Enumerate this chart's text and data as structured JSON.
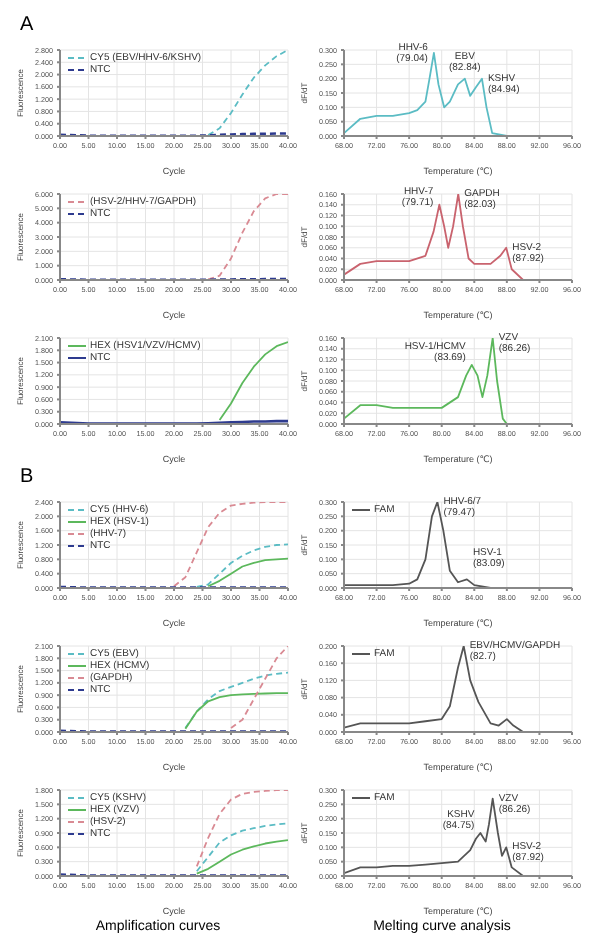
{
  "chart_data": [
    {
      "type": "line",
      "title": "A",
      "xlabel": "Cycle",
      "ylabel": "Fluorescence",
      "x": [
        0,
        5,
        10,
        15,
        20,
        22,
        24,
        26,
        28,
        30,
        32,
        34,
        36,
        38,
        40
      ],
      "grid": true,
      "marker": "none",
      "legend": "top left",
      "series": [
        {
          "name": "CY5 (EBV/HHV-6/KSHV)",
          "color": "#5bbcc4",
          "line_style": "dashed",
          "values": [
            null,
            null,
            null,
            null,
            null,
            null,
            null,
            0.03,
            0.25,
            0.75,
            1.35,
            1.9,
            2.3,
            2.6,
            2.8
          ]
        },
        {
          "name": "NTC",
          "color": "#2e3b8f",
          "line_style": "dashed",
          "values": [
            0.04,
            0.01,
            0.01,
            0.01,
            0.01,
            0.01,
            0.01,
            0.02,
            0.04,
            0.05,
            0.06,
            0.07,
            0.07,
            0.08,
            0.08
          ]
        }
      ],
      "xlim": [
        0,
        40
      ],
      "xticks": [
        {
          "value": 0,
          "label": "0.00"
        },
        {
          "value": 5,
          "label": "5.00"
        },
        {
          "value": 10,
          "label": "10.00"
        },
        {
          "value": 15,
          "label": "15.00"
        },
        {
          "value": 20,
          "label": "20.00"
        },
        {
          "value": 25,
          "label": "25.00"
        },
        {
          "value": 30,
          "label": "30.00"
        },
        {
          "value": 35,
          "label": "35.00"
        },
        {
          "value": 40,
          "label": "40.00"
        }
      ],
      "ylim": [
        0,
        2.8
      ],
      "yticks": [
        {
          "value": 0,
          "label": "0.000"
        },
        {
          "value": 0.4,
          "label": "0.400"
        },
        {
          "value": 0.8,
          "label": "0.800"
        },
        {
          "value": 1.2,
          "label": "1.200"
        },
        {
          "value": 1.6,
          "label": "1.600"
        },
        {
          "value": 2,
          "label": "2.000"
        },
        {
          "value": 2.4,
          "label": "2.400"
        },
        {
          "value": 2.8,
          "label": "2.800"
        }
      ]
    },
    {
      "type": "line",
      "xlabel": "Temperature (℃)",
      "ylabel": "dF/dT",
      "x": [
        68,
        70,
        72,
        74,
        76,
        77,
        78,
        78.5,
        79.04,
        79.6,
        80.3,
        81,
        82,
        82.84,
        83.5,
        84.2,
        84.94,
        85.5,
        86.2,
        88
      ],
      "grid": true,
      "marker": "none",
      "legend": false,
      "series": [
        {
          "color": "#5bbcc4",
          "line_style": "solid",
          "values": [
            0.01,
            0.06,
            0.07,
            0.07,
            0.08,
            0.09,
            0.12,
            0.2,
            0.29,
            0.18,
            0.1,
            0.12,
            0.18,
            0.2,
            0.14,
            0.17,
            0.2,
            0.1,
            0.01,
            0
          ]
        }
      ],
      "xlim": [
        68,
        96
      ],
      "xticks": [
        {
          "value": 68,
          "label": "68.00"
        },
        {
          "value": 72,
          "label": "72.00"
        },
        {
          "value": 76,
          "label": "76.00"
        },
        {
          "value": 80,
          "label": "80.00"
        },
        {
          "value": 84,
          "label": "84.00"
        },
        {
          "value": 88,
          "label": "88.00"
        },
        {
          "value": 92,
          "label": "92.00"
        },
        {
          "value": 96,
          "label": "96.00"
        }
      ],
      "ylim": [
        0,
        0.3
      ],
      "yticks": [
        {
          "value": 0,
          "label": "0.000"
        },
        {
          "value": 0.05,
          "label": "0.050"
        },
        {
          "value": 0.1,
          "label": "0.100"
        },
        {
          "value": 0.15,
          "label": "0.150"
        },
        {
          "value": 0.2,
          "label": "0.200"
        },
        {
          "value": 0.25,
          "label": "0.250"
        },
        {
          "value": 0.3,
          "label": "0.300"
        }
      ],
      "annotations": [
        {
          "text": "HHV-6 (79.04)",
          "x": 79.04,
          "y": 0.29
        },
        {
          "text": "EBV (82.84)",
          "x": 82.84,
          "y": 0.2
        },
        {
          "text": "KSHV (84.94)",
          "x": 84.94,
          "y": 0.2
        }
      ]
    },
    {
      "type": "line",
      "xlabel": "Cycle",
      "ylabel": "Fluorescence",
      "x": [
        0,
        5,
        10,
        15,
        20,
        22,
        24,
        26,
        28,
        30,
        32,
        34,
        36,
        38,
        40
      ],
      "grid": true,
      "marker": "none",
      "legend": "top left",
      "series": [
        {
          "name": "(HSV-2/HHV-7/GAPDH)",
          "color": "#d98a93",
          "line_style": "dashed",
          "values": [
            null,
            null,
            null,
            null,
            null,
            null,
            null,
            0.05,
            0.3,
            1.5,
            3.3,
            4.8,
            5.7,
            6.0,
            6.0
          ]
        },
        {
          "name": "NTC",
          "color": "#2e3b8f",
          "line_style": "dashed",
          "values": [
            0.05,
            0.02,
            0.02,
            0.02,
            0.02,
            0.02,
            0.02,
            0.02,
            0.03,
            0.04,
            0.05,
            0.05,
            0.06,
            0.06,
            0.06
          ]
        }
      ],
      "xlim": [
        0,
        40
      ],
      "xticks": [
        {
          "value": 0,
          "label": "0.00"
        },
        {
          "value": 5,
          "label": "5.00"
        },
        {
          "value": 10,
          "label": "10.00"
        },
        {
          "value": 15,
          "label": "15.00"
        },
        {
          "value": 20,
          "label": "20.00"
        },
        {
          "value": 25,
          "label": "25.00"
        },
        {
          "value": 30,
          "label": "30.00"
        },
        {
          "value": 35,
          "label": "35.00"
        },
        {
          "value": 40,
          "label": "40.00"
        }
      ],
      "ylim": [
        0,
        6
      ],
      "yticks": [
        {
          "value": 0,
          "label": "0.000"
        },
        {
          "value": 1,
          "label": "1.000"
        },
        {
          "value": 2,
          "label": "2.000"
        },
        {
          "value": 3,
          "label": "3.000"
        },
        {
          "value": 4,
          "label": "4.000"
        },
        {
          "value": 5,
          "label": "5.000"
        },
        {
          "value": 6,
          "label": "6.000"
        }
      ]
    },
    {
      "type": "line",
      "xlabel": "Temperature (℃)",
      "ylabel": "dF/dT",
      "x": [
        68,
        70,
        72,
        74,
        76,
        78,
        79,
        79.71,
        80.3,
        80.8,
        81.4,
        82.03,
        82.6,
        83.3,
        84,
        86,
        87.2,
        87.92,
        88.6,
        90,
        92,
        96
      ],
      "grid": true,
      "marker": "none",
      "legend": false,
      "series": [
        {
          "color": "#c9636e",
          "line_style": "solid",
          "values": [
            0.01,
            0.03,
            0.035,
            0.035,
            0.035,
            0.045,
            0.09,
            0.14,
            0.1,
            0.06,
            0.1,
            0.16,
            0.1,
            0.04,
            0.03,
            0.03,
            0.045,
            0.06,
            0.02,
            0,
            0,
            0
          ]
        }
      ],
      "xlim": [
        68,
        96
      ],
      "xticks": [
        {
          "value": 68,
          "label": "68.00"
        },
        {
          "value": 72,
          "label": "72.00"
        },
        {
          "value": 76,
          "label": "76.00"
        },
        {
          "value": 80,
          "label": "80.00"
        },
        {
          "value": 84,
          "label": "84.00"
        },
        {
          "value": 88,
          "label": "88.00"
        },
        {
          "value": 92,
          "label": "92.00"
        },
        {
          "value": 96,
          "label": "96.00"
        }
      ],
      "ylim": [
        0,
        0.16
      ],
      "yticks": [
        {
          "value": 0,
          "label": "0.000"
        },
        {
          "value": 0.02,
          "label": "0.020"
        },
        {
          "value": 0.04,
          "label": "0.040"
        },
        {
          "value": 0.06,
          "label": "0.060"
        },
        {
          "value": 0.08,
          "label": "0.080"
        },
        {
          "value": 0.1,
          "label": "0.100"
        },
        {
          "value": 0.12,
          "label": "0.120"
        },
        {
          "value": 0.14,
          "label": "0.140"
        },
        {
          "value": 0.16,
          "label": "0.160"
        }
      ],
      "annotations": [
        {
          "text": "HHV-7 (79.71)",
          "x": 79.71,
          "y": 0.14
        },
        {
          "text": "GAPDH (82.03)",
          "x": 82.03,
          "y": 0.16
        },
        {
          "text": "HSV-2 (87.92)",
          "x": 87.92,
          "y": 0.06
        }
      ]
    },
    {
      "type": "line",
      "xlabel": "Cycle",
      "ylabel": "Fluorescence",
      "x": [
        0,
        5,
        10,
        15,
        20,
        22,
        24,
        26,
        28,
        30,
        32,
        34,
        36,
        38,
        40
      ],
      "grid": true,
      "marker": "none",
      "legend": "top left",
      "series": [
        {
          "name": "HEX (HSV1/VZV/HCMV)",
          "color": "#5cb85c",
          "line_style": "solid",
          "values": [
            null,
            null,
            null,
            null,
            null,
            null,
            null,
            null,
            0.1,
            0.5,
            1.0,
            1.4,
            1.7,
            1.9,
            2.0
          ]
        },
        {
          "name": "NTC",
          "color": "#2e3b8f",
          "line_style": "solid",
          "values": [
            0.04,
            0.01,
            0.01,
            0.01,
            0.01,
            0.01,
            0.01,
            0.02,
            0.03,
            0.04,
            0.05,
            0.06,
            0.06,
            0.07,
            0.07
          ]
        }
      ],
      "xlim": [
        0,
        40
      ],
      "xticks": [
        {
          "value": 0,
          "label": "0.00"
        },
        {
          "value": 5,
          "label": "5.00"
        },
        {
          "value": 10,
          "label": "10.00"
        },
        {
          "value": 15,
          "label": "15.00"
        },
        {
          "value": 20,
          "label": "20.00"
        },
        {
          "value": 25,
          "label": "25.00"
        },
        {
          "value": 30,
          "label": "30.00"
        },
        {
          "value": 35,
          "label": "35.00"
        },
        {
          "value": 40,
          "label": "40.00"
        }
      ],
      "ylim": [
        0,
        2.1
      ],
      "yticks": [
        {
          "value": 0,
          "label": "0.000"
        },
        {
          "value": 0.3,
          "label": "0.300"
        },
        {
          "value": 0.6,
          "label": "0.600"
        },
        {
          "value": 0.9,
          "label": "0.900"
        },
        {
          "value": 1.2,
          "label": "1.200"
        },
        {
          "value": 1.5,
          "label": "1.500"
        },
        {
          "value": 1.8,
          "label": "1.800"
        },
        {
          "value": 2.1,
          "label": "2.100"
        }
      ]
    },
    {
      "type": "line",
      "xlabel": "Temperature (℃)",
      "ylabel": "dF/dT",
      "x": [
        68,
        70,
        72,
        74,
        76,
        78,
        80,
        82,
        83,
        83.69,
        84.4,
        85,
        85.6,
        86.26,
        86.8,
        87.5,
        88,
        92,
        96
      ],
      "grid": true,
      "marker": "none",
      "legend": false,
      "series": [
        {
          "color": "#5cb85c",
          "line_style": "solid",
          "values": [
            0.01,
            0.035,
            0.035,
            0.03,
            0.03,
            0.03,
            0.03,
            0.05,
            0.09,
            0.11,
            0.09,
            0.05,
            0.09,
            0.16,
            0.08,
            0.01,
            0,
            0,
            0
          ]
        }
      ],
      "xlim": [
        68,
        96
      ],
      "xticks": [
        {
          "value": 68,
          "label": "68.00"
        },
        {
          "value": 72,
          "label": "72.00"
        },
        {
          "value": 76,
          "label": "76.00"
        },
        {
          "value": 80,
          "label": "80.00"
        },
        {
          "value": 84,
          "label": "84.00"
        },
        {
          "value": 88,
          "label": "88.00"
        },
        {
          "value": 92,
          "label": "92.00"
        },
        {
          "value": 96,
          "label": "96.00"
        }
      ],
      "ylim": [
        0,
        0.16
      ],
      "yticks": [
        {
          "value": 0,
          "label": "0.000"
        },
        {
          "value": 0.02,
          "label": "0.020"
        },
        {
          "value": 0.04,
          "label": "0.040"
        },
        {
          "value": 0.06,
          "label": "0.060"
        },
        {
          "value": 0.08,
          "label": "0.080"
        },
        {
          "value": 0.1,
          "label": "0.100"
        },
        {
          "value": 0.12,
          "label": "0.120"
        },
        {
          "value": 0.14,
          "label": "0.140"
        },
        {
          "value": 0.16,
          "label": "0.160"
        }
      ],
      "annotations": [
        {
          "text": "HSV-1/HCMV (83.69)",
          "x": 83.69,
          "y": 0.11
        },
        {
          "text": "VZV (86.26)",
          "x": 86.26,
          "y": 0.16
        }
      ]
    },
    {
      "type": "line",
      "title": "B",
      "xlabel": "Cycle",
      "ylabel": "Fluorescence",
      "x": [
        0,
        5,
        10,
        15,
        20,
        22,
        24,
        26,
        28,
        30,
        32,
        34,
        36,
        38,
        40
      ],
      "grid": true,
      "marker": "none",
      "legend": "top left",
      "series": [
        {
          "name": "CY5 (HHV-6)",
          "color": "#5bbcc4",
          "line_style": "dashed",
          "values": [
            null,
            null,
            null,
            null,
            null,
            null,
            0.03,
            0.1,
            0.4,
            0.7,
            0.9,
            1.05,
            1.15,
            1.2,
            1.22
          ]
        },
        {
          "name": "HEX (HSV-1)",
          "color": "#5cb85c",
          "line_style": "solid",
          "values": [
            null,
            null,
            null,
            null,
            null,
            null,
            null,
            0.05,
            0.2,
            0.4,
            0.6,
            0.7,
            0.78,
            0.8,
            0.82
          ]
        },
        {
          "name": "(HHV-7)",
          "color": "#d98a93",
          "line_style": "dashed",
          "values": [
            null,
            null,
            null,
            null,
            0.05,
            0.3,
            1.0,
            1.7,
            2.1,
            2.3,
            2.35,
            2.38,
            2.4,
            2.4,
            2.4
          ]
        },
        {
          "name": "NTC",
          "color": "#2e3b8f",
          "line_style": "dashed",
          "values": [
            0.03,
            0.01,
            0.01,
            0.01,
            0.01,
            0.01,
            0.01,
            0.01,
            0.01,
            0.01,
            0.01,
            0.01,
            0.01,
            0.01,
            0.01
          ]
        }
      ],
      "xlim": [
        0,
        40
      ],
      "xticks": [
        {
          "value": 0,
          "label": "0.00"
        },
        {
          "value": 5,
          "label": "5.00"
        },
        {
          "value": 10,
          "label": "10.00"
        },
        {
          "value": 15,
          "label": "15.00"
        },
        {
          "value": 20,
          "label": "20.00"
        },
        {
          "value": 25,
          "label": "25.00"
        },
        {
          "value": 30,
          "label": "30.00"
        },
        {
          "value": 35,
          "label": "35.00"
        },
        {
          "value": 40,
          "label": "40.00"
        }
      ],
      "ylim": [
        0,
        2.4
      ],
      "yticks": [
        {
          "value": 0,
          "label": "0.000"
        },
        {
          "value": 0.4,
          "label": "0.400"
        },
        {
          "value": 0.8,
          "label": "0.800"
        },
        {
          "value": 1.2,
          "label": "1.200"
        },
        {
          "value": 1.6,
          "label": "1.600"
        },
        {
          "value": 2,
          "label": "2.000"
        },
        {
          "value": 2.4,
          "label": "2.400"
        }
      ]
    },
    {
      "type": "line",
      "xlabel": "Temperature (℃)",
      "ylabel": "dF/dT",
      "x": [
        68,
        70,
        72,
        74,
        76,
        77,
        78,
        78.8,
        79.47,
        80.2,
        81,
        82,
        83.09,
        84,
        86,
        90,
        96
      ],
      "grid": true,
      "marker": "none",
      "legend": "top left",
      "series": [
        {
          "name": "FAM",
          "color": "#555555",
          "line_style": "solid",
          "values": [
            0.01,
            0.01,
            0.01,
            0.01,
            0.015,
            0.03,
            0.1,
            0.25,
            0.3,
            0.2,
            0.06,
            0.02,
            0.03,
            0.01,
            0,
            0,
            0
          ]
        }
      ],
      "xlim": [
        68,
        96
      ],
      "xticks": [
        {
          "value": 68,
          "label": "68.00"
        },
        {
          "value": 72,
          "label": "72.00"
        },
        {
          "value": 76,
          "label": "76.00"
        },
        {
          "value": 80,
          "label": "80.00"
        },
        {
          "value": 84,
          "label": "84.00"
        },
        {
          "value": 88,
          "label": "88.00"
        },
        {
          "value": 92,
          "label": "92.00"
        },
        {
          "value": 96,
          "label": "96.00"
        }
      ],
      "ylim": [
        0,
        0.3
      ],
      "yticks": [
        {
          "value": 0,
          "label": "0.000"
        },
        {
          "value": 0.05,
          "label": "0.050"
        },
        {
          "value": 0.1,
          "label": "0.100"
        },
        {
          "value": 0.15,
          "label": "0.150"
        },
        {
          "value": 0.2,
          "label": "0.200"
        },
        {
          "value": 0.25,
          "label": "0.250"
        },
        {
          "value": 0.3,
          "label": "0.300"
        }
      ],
      "annotations": [
        {
          "text": "HHV-6/7 (79.47)",
          "x": 79.47,
          "y": 0.3
        },
        {
          "text": "HSV-1 (83.09)",
          "x": 83.09,
          "y": 0.03
        }
      ]
    },
    {
      "type": "line",
      "xlabel": "Cycle",
      "ylabel": "Fluorescence",
      "x": [
        0,
        5,
        10,
        15,
        20,
        22,
        24,
        26,
        28,
        30,
        32,
        34,
        36,
        38,
        40
      ],
      "grid": true,
      "marker": "none",
      "legend": "top left",
      "series": [
        {
          "name": "CY5 (EBV)",
          "color": "#5bbcc4",
          "line_style": "dashed",
          "values": [
            null,
            null,
            null,
            null,
            null,
            0.1,
            0.5,
            0.8,
            1.0,
            1.1,
            1.2,
            1.3,
            1.38,
            1.42,
            1.45
          ]
        },
        {
          "name": "HEX (HCMV)",
          "color": "#5cb85c",
          "line_style": "solid",
          "values": [
            null,
            null,
            null,
            null,
            null,
            0.08,
            0.5,
            0.75,
            0.85,
            0.9,
            0.92,
            0.93,
            0.94,
            0.95,
            0.95
          ]
        },
        {
          "name": "(GAPDH)",
          "color": "#d98a93",
          "line_style": "dashed",
          "values": [
            null,
            null,
            null,
            null,
            null,
            null,
            null,
            null,
            null,
            0.1,
            0.3,
            0.8,
            1.3,
            1.8,
            2.1
          ]
        },
        {
          "name": "NTC",
          "color": "#2e3b8f",
          "line_style": "dashed",
          "values": [
            0.03,
            0.01,
            0.01,
            0.01,
            0.01,
            0.01,
            0.01,
            0.01,
            0.01,
            0.01,
            0.01,
            0.01,
            0.01,
            0.01,
            0.01
          ]
        }
      ],
      "xlim": [
        0,
        40
      ],
      "xticks": [
        {
          "value": 0,
          "label": "0.00"
        },
        {
          "value": 5,
          "label": "5.00"
        },
        {
          "value": 10,
          "label": "10.00"
        },
        {
          "value": 15,
          "label": "15.00"
        },
        {
          "value": 20,
          "label": "20.00"
        },
        {
          "value": 25,
          "label": "25.00"
        },
        {
          "value": 30,
          "label": "30.00"
        },
        {
          "value": 35,
          "label": "35.00"
        },
        {
          "value": 40,
          "label": "40.00"
        }
      ],
      "ylim": [
        0,
        2.1
      ],
      "yticks": [
        {
          "value": 0,
          "label": "0.000"
        },
        {
          "value": 0.3,
          "label": "0.300"
        },
        {
          "value": 0.6,
          "label": "0.600"
        },
        {
          "value": 0.9,
          "label": "0.900"
        },
        {
          "value": 1.2,
          "label": "1.200"
        },
        {
          "value": 1.5,
          "label": "1.500"
        },
        {
          "value": 1.8,
          "label": "1.800"
        },
        {
          "value": 2.1,
          "label": "2.100"
        }
      ]
    },
    {
      "type": "line",
      "xlabel": "Temperature (℃)",
      "ylabel": "dF/dT",
      "x": [
        68,
        70,
        72,
        74,
        76,
        78,
        80,
        81,
        82,
        82.7,
        83.5,
        84.5,
        86,
        87,
        88,
        88.8,
        90,
        92,
        96
      ],
      "grid": true,
      "marker": "none",
      "legend": "top left",
      "series": [
        {
          "name": "FAM",
          "color": "#555555",
          "line_style": "solid",
          "values": [
            0.01,
            0.02,
            0.02,
            0.02,
            0.02,
            0.025,
            0.03,
            0.06,
            0.15,
            0.2,
            0.12,
            0.07,
            0.02,
            0.015,
            0.03,
            0.015,
            0,
            0,
            0
          ]
        }
      ],
      "xlim": [
        68,
        96
      ],
      "xticks": [
        {
          "value": 68,
          "label": "68.00"
        },
        {
          "value": 72,
          "label": "72.00"
        },
        {
          "value": 76,
          "label": "76.00"
        },
        {
          "value": 80,
          "label": "80.00"
        },
        {
          "value": 84,
          "label": "84.00"
        },
        {
          "value": 88,
          "label": "88.00"
        },
        {
          "value": 92,
          "label": "92.00"
        },
        {
          "value": 96,
          "label": "96.00"
        }
      ],
      "ylim": [
        0,
        0.2
      ],
      "yticks": [
        {
          "value": 0,
          "label": "0.000"
        },
        {
          "value": 0.04,
          "label": "0.040"
        },
        {
          "value": 0.08,
          "label": "0.080"
        },
        {
          "value": 0.12,
          "label": "0.120"
        },
        {
          "value": 0.16,
          "label": "0.160"
        },
        {
          "value": 0.2,
          "label": "0.200"
        }
      ],
      "annotations": [
        {
          "text": "EBV/HCMV/GAPDH (82.7)",
          "x": 82.7,
          "y": 0.2
        }
      ]
    },
    {
      "type": "line",
      "xlabel": "Cycle",
      "ylabel": "Fluorescence",
      "x": [
        0,
        5,
        10,
        15,
        20,
        22,
        24,
        26,
        28,
        30,
        32,
        34,
        36,
        38,
        40
      ],
      "grid": true,
      "marker": "none",
      "legend": "top left",
      "series": [
        {
          "name": "CY5 (KSHV)",
          "color": "#5bbcc4",
          "line_style": "dashed",
          "values": [
            null,
            null,
            null,
            null,
            null,
            null,
            0.1,
            0.4,
            0.7,
            0.85,
            0.95,
            1.0,
            1.05,
            1.08,
            1.1
          ]
        },
        {
          "name": "HEX (VZV)",
          "color": "#5cb85c",
          "line_style": "solid",
          "values": [
            null,
            null,
            null,
            null,
            null,
            null,
            0.05,
            0.15,
            0.3,
            0.45,
            0.55,
            0.62,
            0.68,
            0.72,
            0.75
          ]
        },
        {
          "name": "(HSV-2)",
          "color": "#d98a93",
          "line_style": "dashed",
          "values": [
            null,
            null,
            null,
            null,
            null,
            null,
            0.2,
            0.8,
            1.3,
            1.6,
            1.72,
            1.76,
            1.78,
            1.8,
            1.8
          ]
        },
        {
          "name": "NTC",
          "color": "#2e3b8f",
          "line_style": "dashed",
          "values": [
            0.03,
            0.01,
            0.01,
            0.01,
            0.01,
            0.01,
            0.01,
            0.01,
            0.01,
            0.01,
            0.01,
            0.01,
            0.01,
            0.01,
            0.01
          ]
        }
      ],
      "xlim": [
        0,
        40
      ],
      "xticks": [
        {
          "value": 0,
          "label": "0.00"
        },
        {
          "value": 5,
          "label": "5.00"
        },
        {
          "value": 10,
          "label": "10.00"
        },
        {
          "value": 15,
          "label": "15.00"
        },
        {
          "value": 20,
          "label": "20.00"
        },
        {
          "value": 25,
          "label": "25.00"
        },
        {
          "value": 30,
          "label": "30.00"
        },
        {
          "value": 35,
          "label": "35.00"
        },
        {
          "value": 40,
          "label": "40.00"
        }
      ],
      "ylim": [
        0,
        1.8
      ],
      "yticks": [
        {
          "value": 0,
          "label": "0.000"
        },
        {
          "value": 0.3,
          "label": "0.300"
        },
        {
          "value": 0.6,
          "label": "0.600"
        },
        {
          "value": 0.9,
          "label": "0.900"
        },
        {
          "value": 1.2,
          "label": "1.200"
        },
        {
          "value": 1.5,
          "label": "1.500"
        },
        {
          "value": 1.8,
          "label": "1.800"
        }
      ],
      "annotations": [
        "Amplification curves"
      ]
    },
    {
      "type": "line",
      "xlabel": "Temperature (℃)",
      "ylabel": "dF/dT",
      "x": [
        68,
        70,
        72,
        74,
        76,
        78,
        80,
        82,
        83.5,
        84.2,
        84.75,
        85.4,
        85.8,
        86.26,
        86.9,
        87.4,
        87.92,
        88.6,
        90,
        92,
        96
      ],
      "grid": true,
      "marker": "none",
      "legend": "top left",
      "series": [
        {
          "name": "FAM",
          "color": "#555555",
          "line_style": "solid",
          "values": [
            0.01,
            0.03,
            0.03,
            0.035,
            0.035,
            0.04,
            0.045,
            0.05,
            0.09,
            0.13,
            0.15,
            0.12,
            0.18,
            0.27,
            0.15,
            0.07,
            0.1,
            0.03,
            0,
            0,
            0
          ]
        }
      ],
      "xlim": [
        68,
        96
      ],
      "xticks": [
        {
          "value": 68,
          "label": "68.00"
        },
        {
          "value": 72,
          "label": "72.00"
        },
        {
          "value": 76,
          "label": "76.00"
        },
        {
          "value": 80,
          "label": "80.00"
        },
        {
          "value": 84,
          "label": "84.00"
        },
        {
          "value": 88,
          "label": "88.00"
        },
        {
          "value": 92,
          "label": "92.00"
        },
        {
          "value": 96,
          "label": "96.00"
        }
      ],
      "ylim": [
        0,
        0.3
      ],
      "yticks": [
        {
          "value": 0,
          "label": "0.000"
        },
        {
          "value": 0.05,
          "label": "0.050"
        },
        {
          "value": 0.1,
          "label": "0.100"
        },
        {
          "value": 0.15,
          "label": "0.150"
        },
        {
          "value": 0.2,
          "label": "0.200"
        },
        {
          "value": 0.25,
          "label": "0.250"
        },
        {
          "value": 0.3,
          "label": "0.300"
        }
      ],
      "annotations": [
        {
          "text": "KSHV (84.75)",
          "x": 84.75,
          "y": 0.15
        },
        {
          "text": "VZV (86.26)",
          "x": 86.26,
          "y": 0.27
        },
        {
          "text": "HSV-2 (87.92)",
          "x": 87.92,
          "y": 0.1
        },
        "Melting curve analysis"
      ]
    }
  ]
}
